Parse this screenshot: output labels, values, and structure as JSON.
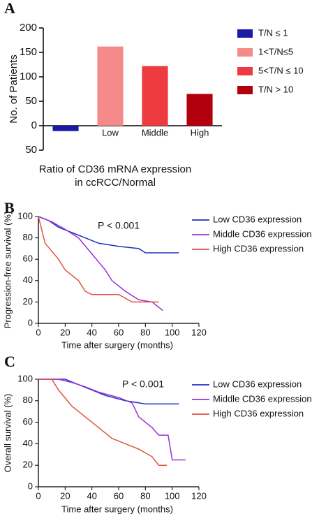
{
  "chart_data": [
    {
      "type": "bar",
      "panel_label": "A",
      "ylabel": "No. of Patients",
      "xlabel": [
        "Ratio of CD36 mRNA expression",
        "in ccRCC/Normal"
      ],
      "categories": [
        null,
        "Low",
        "Middle",
        "High"
      ],
      "series": [
        {
          "name": "T/N ≤ 1",
          "color": "#1a1aa6",
          "values": [
            -11,
            null,
            null,
            null
          ]
        },
        {
          "name": "1<T/N≤5",
          "color": "#f58a8a",
          "values": [
            null,
            162,
            null,
            null
          ]
        },
        {
          "name": "5<T/N ≤ 10",
          "color": "#ee3b40",
          "values": [
            null,
            null,
            122,
            null
          ]
        },
        {
          "name": "T/N > 10",
          "color": "#b3000f",
          "values": [
            null,
            null,
            null,
            65
          ]
        }
      ],
      "ylim": [
        -50,
        200
      ],
      "yticks": [
        {
          "value": -50,
          "label": "50"
        },
        0,
        50,
        100,
        150,
        200
      ]
    },
    {
      "type": "line",
      "panel_label": "B",
      "ylabel": "Progression-free survival (%)",
      "xlabel": "Time after surgery (months)",
      "annotation": "P < 0.001",
      "series": [
        {
          "name": "Low CD36 expression",
          "color": "#1f2fbf",
          "x": [
            0,
            8,
            15,
            25,
            35,
            45,
            60,
            75,
            80,
            105
          ],
          "values": [
            100,
            96,
            90,
            85,
            80,
            75,
            72,
            70,
            66,
            66
          ]
        },
        {
          "name": "Middle CD36 expression",
          "color": "#9b30d9",
          "x": [
            0,
            10,
            20,
            30,
            40,
            50,
            55,
            65,
            75,
            85,
            90,
            93
          ],
          "values": [
            100,
            95,
            88,
            80,
            65,
            50,
            40,
            30,
            22,
            20,
            15,
            12
          ]
        },
        {
          "name": "High CD36 expression",
          "color": "#e0533f",
          "x": [
            0,
            5,
            15,
            20,
            30,
            35,
            40,
            60,
            70,
            90
          ],
          "values": [
            100,
            75,
            60,
            50,
            40,
            30,
            27,
            27,
            20,
            20
          ]
        }
      ],
      "xlim": [
        0,
        120
      ],
      "xticks": [
        0,
        20,
        40,
        60,
        80,
        100,
        120
      ],
      "ylim": [
        0,
        100
      ],
      "yticks": [
        0,
        20,
        40,
        60,
        80,
        100
      ]
    },
    {
      "type": "line",
      "panel_label": "C",
      "ylabel": "Overall survival (%)",
      "xlabel": "Time after surgery (months)",
      "annotation": "P < 0.001",
      "series": [
        {
          "name": "Low CD36 expression",
          "color": "#1f2fbf",
          "x": [
            0,
            20,
            30,
            40,
            50,
            65,
            80,
            105
          ],
          "values": [
            100,
            100,
            95,
            90,
            85,
            80,
            77,
            77
          ]
        },
        {
          "name": "Middle CD36 expression",
          "color": "#9b30d9",
          "x": [
            0,
            15,
            25,
            35,
            45,
            60,
            70,
            75,
            85,
            90,
            97,
            100,
            110
          ],
          "values": [
            100,
            100,
            97,
            93,
            88,
            83,
            78,
            65,
            55,
            48,
            48,
            25,
            25
          ]
        },
        {
          "name": "High CD36 expression",
          "color": "#e0533f",
          "x": [
            0,
            10,
            15,
            25,
            35,
            45,
            55,
            65,
            75,
            85,
            90,
            96
          ],
          "values": [
            100,
            100,
            90,
            75,
            65,
            55,
            45,
            40,
            35,
            28,
            20,
            20
          ]
        }
      ],
      "xlim": [
        0,
        120
      ],
      "xticks": [
        0,
        20,
        40,
        60,
        80,
        100,
        120
      ],
      "ylim": [
        0,
        100
      ],
      "yticks": [
        0,
        20,
        40,
        60,
        80,
        100
      ]
    }
  ]
}
